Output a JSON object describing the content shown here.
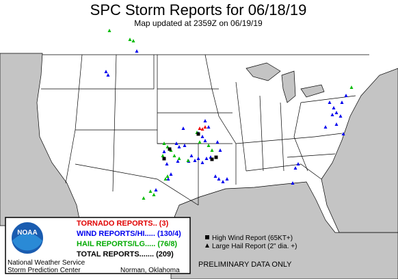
{
  "header": {
    "title": "SPC Storm Reports for 06/18/19",
    "subtitle": "Map updated at 2359Z on 06/19/19"
  },
  "legend": {
    "tornado": "TORNADO REPORTS.. (3)",
    "wind": "WIND REPORTS/HI..... (130/4)",
    "hail": "HAIL REPORTS/LG..... (76/8)",
    "total": "TOTAL REPORTS....... (209)"
  },
  "logo": "NOAA",
  "credits": {
    "line1": "National Weather Service",
    "line2": "Storm Prediction Center",
    "location": "Norman, Oklahoma"
  },
  "key": {
    "high_wind": "High Wind Report (65KT+)",
    "large_hail": "Large Hail Report (2\" dia. +)"
  },
  "notice": "PRELIMINARY DATA ONLY"
}
